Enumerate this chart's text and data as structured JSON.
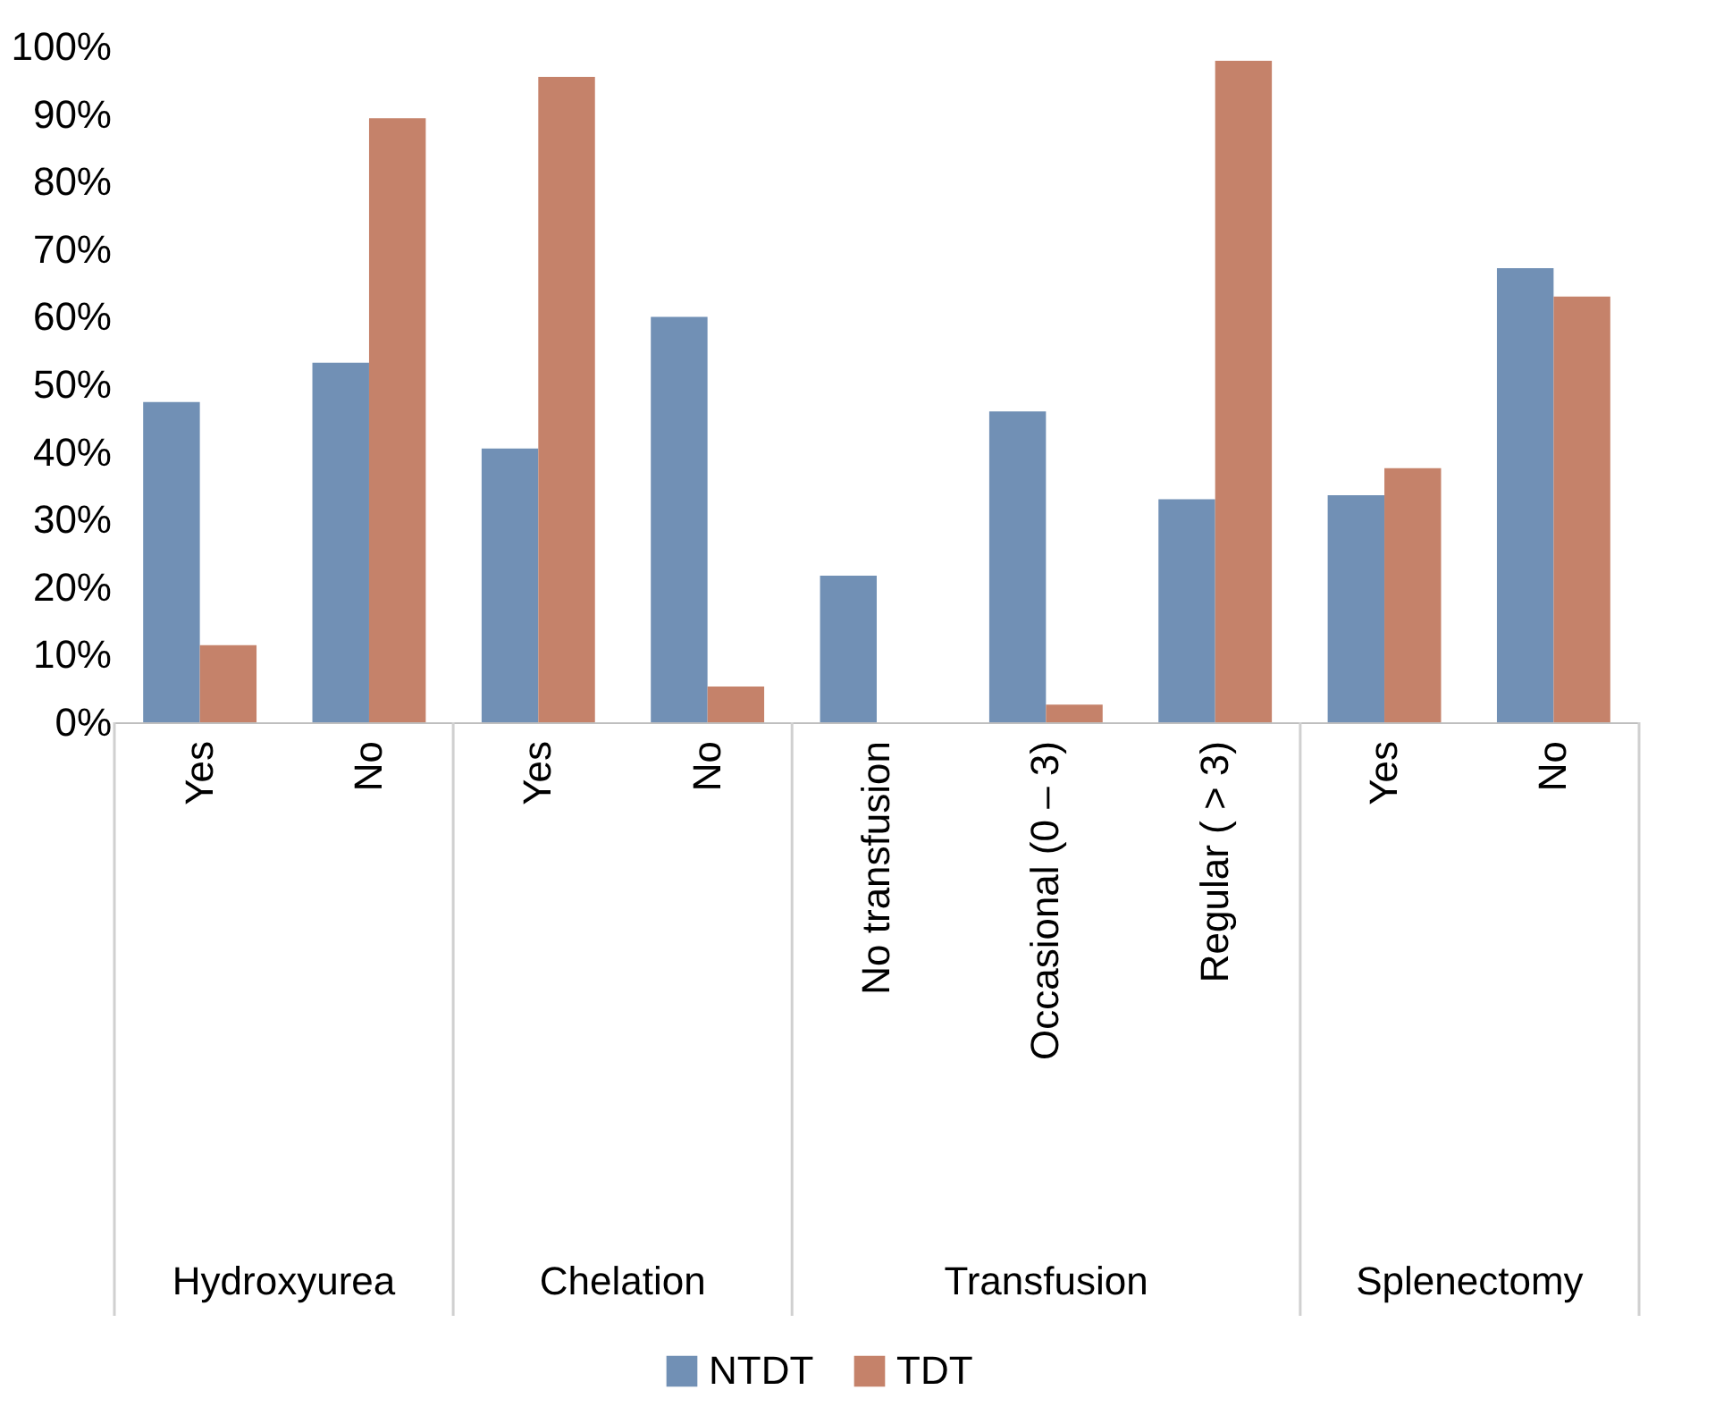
{
  "chart_data": {
    "type": "bar",
    "categories": [
      "Yes",
      "No",
      "Yes",
      "No",
      "No transfusion",
      "Occasional (0 – 3)",
      "Regular ( > 3)",
      "Yes",
      "No"
    ],
    "series": [
      {
        "name": "NTDT",
        "color": "#7190b5",
        "values": [
          47.4,
          53.2,
          40.5,
          60.0,
          21.7,
          46.0,
          33.0,
          33.6,
          67.2
        ]
      },
      {
        "name": "TDT",
        "color": "#c5826a",
        "values": [
          11.4,
          89.4,
          95.5,
          5.3,
          0,
          2.6,
          97.9,
          37.6,
          63.0
        ]
      }
    ],
    "annotations": [
      "Hydroxyurea",
      "Chelation",
      "Transfusion",
      "Splenectomy"
    ],
    "ylim": [
      0,
      100
    ],
    "yticks": [
      {
        "value": 0,
        "label": "0%"
      },
      {
        "value": 10,
        "label": "10%"
      },
      {
        "value": 20,
        "label": "20%"
      },
      {
        "value": 30,
        "label": "30%"
      },
      {
        "value": 40,
        "label": "40%"
      },
      {
        "value": 50,
        "label": "50%"
      },
      {
        "value": 60,
        "label": "60%"
      },
      {
        "value": 70,
        "label": "70%"
      },
      {
        "value": 80,
        "label": "80%"
      },
      {
        "value": 90,
        "label": "90%"
      },
      {
        "value": 100,
        "label": "100%"
      }
    ],
    "legend": "bottom",
    "grid": false
  }
}
